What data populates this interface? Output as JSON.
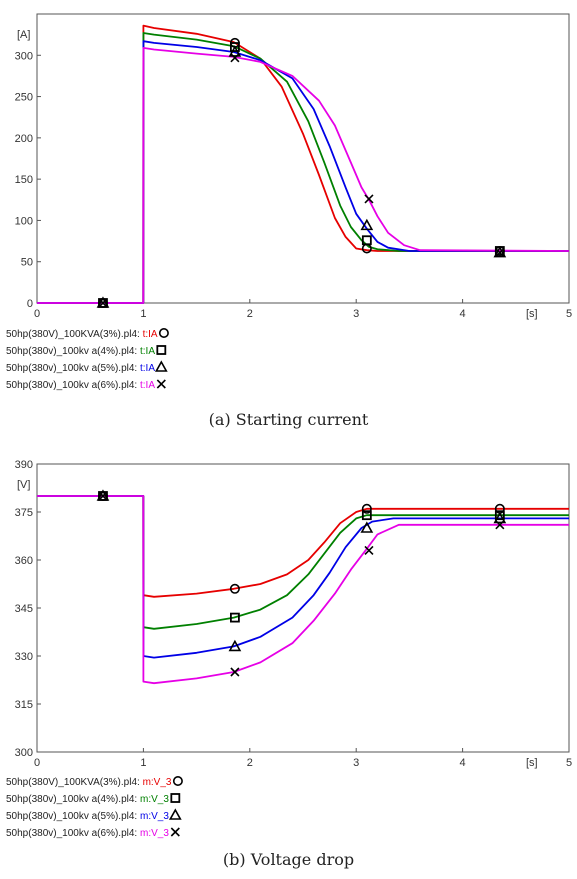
{
  "chart_data": [
    {
      "type": "line",
      "caption": "(a) Starting current",
      "ylabel": "[A]",
      "xlabel": "[s]",
      "xlim": [
        0,
        5
      ],
      "ylim": [
        0,
        350
      ],
      "xticks": [
        "0",
        "1",
        "2",
        "3",
        "4",
        "5"
      ],
      "yticks": [
        "0",
        "50",
        "100",
        "150",
        "200",
        "250",
        "300"
      ],
      "ytick_values": [
        0,
        50,
        100,
        150,
        200,
        250,
        300
      ],
      "grid": false,
      "legend_position": "bottom-left",
      "series": [
        {
          "name": "50hp(380V)_100KVA(3%).pl4:",
          "label_prefix": "50hp(380V)_100KVA(3%).pl4: ",
          "label_suffix": "t:IA",
          "color": "#e60000",
          "marker": "circle",
          "x": [
            0,
            0.999,
            1.0,
            1.1,
            1.5,
            1.85,
            2.1,
            2.3,
            2.5,
            2.65,
            2.8,
            2.9,
            3.0,
            3.1,
            3.2,
            3.4,
            5.0
          ],
          "y": [
            0,
            0,
            336,
            333,
            326,
            316,
            296,
            262,
            205,
            155,
            103,
            80,
            66,
            64,
            63,
            63,
            63
          ]
        },
        {
          "name": "50hp(380v)_100kv a(4%).pl4:",
          "label_prefix": "50hp(380v)_100kv a(4%).pl4: ",
          "label_suffix": "t:IA",
          "color": "#008000",
          "marker": "square",
          "x": [
            0,
            0.999,
            1.0,
            1.1,
            1.5,
            1.85,
            2.1,
            2.35,
            2.55,
            2.7,
            2.85,
            2.95,
            3.05,
            3.12,
            3.2,
            3.4,
            5.0
          ],
          "y": [
            0,
            0,
            327,
            325,
            319,
            311,
            296,
            268,
            220,
            170,
            118,
            92,
            76,
            68,
            65,
            63,
            63
          ]
        },
        {
          "name": "50hp(380v)_100kv a(5%).pl4:",
          "label_prefix": "50hp(380v)_100kv a(5%).pl4: ",
          "label_suffix": "t:IA",
          "color": "#0000e6",
          "marker": "triangle",
          "x": [
            0,
            0.999,
            1.0,
            1.1,
            1.5,
            1.85,
            2.1,
            2.4,
            2.6,
            2.75,
            2.9,
            3.0,
            3.1,
            3.2,
            3.3,
            3.5,
            5.0
          ],
          "y": [
            0,
            0,
            317,
            315,
            310,
            304,
            294,
            272,
            235,
            190,
            140,
            108,
            90,
            74,
            67,
            63,
            63
          ]
        },
        {
          "name": "50hp(380v)_100kv a(6%).pl4:",
          "label_prefix": "50hp(380v)_100kv a(6%).pl4: ",
          "label_suffix": "t:IA",
          "color": "#e600e6",
          "marker": "x",
          "x": [
            0,
            0.999,
            1.0,
            1.1,
            1.5,
            1.85,
            2.1,
            2.4,
            2.65,
            2.8,
            2.95,
            3.05,
            3.12,
            3.2,
            3.3,
            3.45,
            3.6,
            5.0
          ],
          "y": [
            0,
            0,
            309,
            307,
            302,
            298,
            292,
            275,
            245,
            215,
            170,
            140,
            125,
            105,
            85,
            70,
            64,
            63
          ]
        }
      ],
      "markers": [
        {
          "series": 0,
          "points": [
            [
              0.62,
              0
            ],
            [
              1.86,
              315
            ],
            [
              3.1,
              66
            ],
            [
              4.35,
              63
            ]
          ]
        },
        {
          "series": 1,
          "points": [
            [
              0.62,
              0
            ],
            [
              1.86,
              310
            ],
            [
              3.1,
              76
            ],
            [
              4.35,
              63
            ]
          ]
        },
        {
          "series": 2,
          "points": [
            [
              0.62,
              0
            ],
            [
              1.86,
              304
            ],
            [
              3.1,
              94
            ],
            [
              4.35,
              61
            ]
          ]
        },
        {
          "series": 3,
          "points": [
            [
              0.62,
              0
            ],
            [
              1.86,
              297
            ],
            [
              3.12,
              126
            ],
            [
              4.35,
              61
            ]
          ]
        }
      ]
    },
    {
      "type": "line",
      "caption": "(b) Voltage drop",
      "ylabel": "[V]",
      "xlabel": "[s]",
      "xlim": [
        0,
        5
      ],
      "ylim": [
        300,
        390
      ],
      "xticks": [
        "0",
        "1",
        "2",
        "3",
        "4",
        "5"
      ],
      "yticks": [
        "300",
        "315",
        "330",
        "345",
        "360",
        "375",
        "390"
      ],
      "ytick_values": [
        300,
        315,
        330,
        345,
        360,
        375,
        390
      ],
      "grid": false,
      "legend_position": "bottom-left",
      "series": [
        {
          "name": "50hp(380V)_100KVA(3%).pl4:",
          "label_prefix": "50hp(380V)_100KVA(3%).pl4: ",
          "label_suffix": "m:V_3",
          "color": "#e60000",
          "marker": "circle",
          "x": [
            0,
            0.999,
            1.0,
            1.1,
            1.5,
            1.85,
            2.1,
            2.35,
            2.55,
            2.7,
            2.85,
            3.0,
            3.1,
            3.3,
            5.0
          ],
          "y": [
            380,
            380,
            349,
            348.5,
            349.5,
            351,
            352.5,
            355.5,
            360,
            365.5,
            371.5,
            375,
            376,
            376,
            376
          ]
        },
        {
          "name": "50hp(380v)_100kv a(4%).pl4:",
          "label_prefix": "50hp(380v)_100kv a(4%).pl4: ",
          "label_suffix": "m:V_3",
          "color": "#008000",
          "marker": "square",
          "x": [
            0,
            0.999,
            1.0,
            1.1,
            1.5,
            1.85,
            2.1,
            2.35,
            2.55,
            2.7,
            2.85,
            3.0,
            3.1,
            3.3,
            5.0
          ],
          "y": [
            380,
            380,
            339,
            338.5,
            340,
            342,
            344.5,
            349,
            355.5,
            362,
            368.5,
            373,
            374,
            374,
            374
          ]
        },
        {
          "name": "50hp(380v)_100kv a(5%).pl4:",
          "label_prefix": "50hp(380v)_100kv a(5%).pl4: ",
          "label_suffix": "m:V_3",
          "color": "#0000e6",
          "marker": "triangle",
          "x": [
            0,
            0.999,
            1.0,
            1.1,
            1.5,
            1.85,
            2.1,
            2.4,
            2.6,
            2.75,
            2.9,
            3.05,
            3.15,
            3.35,
            5.0
          ],
          "y": [
            380,
            380,
            330,
            329.5,
            331,
            333,
            336,
            342,
            349,
            356,
            364,
            370,
            372,
            373,
            373
          ]
        },
        {
          "name": "50hp(380v)_100kv a(6%).pl4:",
          "label_prefix": "50hp(380v)_100kv a(6%).pl4: ",
          "label_suffix": "m:V_3",
          "color": "#e600e6",
          "marker": "x",
          "x": [
            0,
            0.999,
            1.0,
            1.1,
            1.5,
            1.85,
            2.1,
            2.4,
            2.6,
            2.8,
            2.95,
            3.1,
            3.2,
            3.4,
            5.0
          ],
          "y": [
            380,
            380,
            322,
            321.5,
            323,
            325,
            328,
            334,
            341,
            349.5,
            357,
            363.5,
            368,
            371,
            371
          ]
        }
      ],
      "markers": [
        {
          "series": 0,
          "points": [
            [
              0.62,
              380
            ],
            [
              1.86,
              351
            ],
            [
              3.1,
              376
            ],
            [
              4.35,
              376
            ]
          ]
        },
        {
          "series": 1,
          "points": [
            [
              0.62,
              380
            ],
            [
              1.86,
              342
            ],
            [
              3.1,
              374
            ],
            [
              4.35,
              374
            ]
          ]
        },
        {
          "series": 2,
          "points": [
            [
              0.62,
              380
            ],
            [
              1.86,
              333
            ],
            [
              3.1,
              370
            ],
            [
              4.35,
              373
            ]
          ]
        },
        {
          "series": 3,
          "points": [
            [
              0.62,
              380
            ],
            [
              1.86,
              325
            ],
            [
              3.12,
              363
            ],
            [
              4.35,
              371
            ]
          ]
        }
      ]
    }
  ]
}
